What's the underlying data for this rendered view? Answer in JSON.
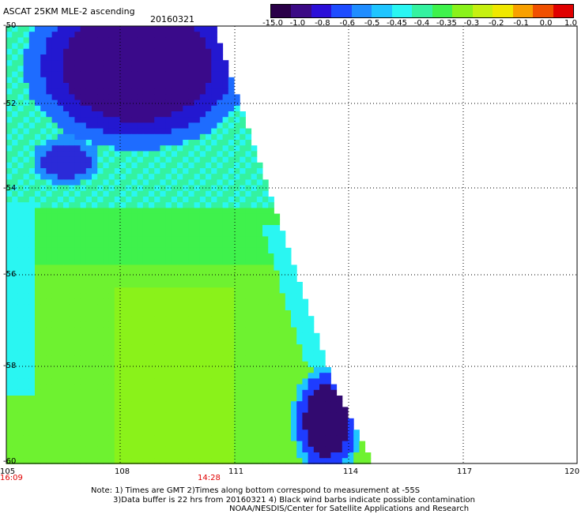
{
  "header": {
    "title": "ASCAT 25KM MLE-2 ascending",
    "date": "20160321"
  },
  "colorbar": {
    "labels": [
      "-15.0",
      "-1.0",
      "-0.8",
      "-0.6",
      "-0.5",
      "-0.45",
      "-0.4",
      "-0.35",
      "-0.3",
      "-0.2",
      "-0.1",
      "0.0",
      "1.0"
    ],
    "colors": [
      "#2a0048",
      "#3b0a85",
      "#2b0fd8",
      "#1e4cff",
      "#1f8dff",
      "#1fc5ff",
      "#2af6f2",
      "#34f2a0",
      "#3ff24c",
      "#8af21a",
      "#c6f010",
      "#f0e800",
      "#f8a000",
      "#f05000",
      "#e00000"
    ]
  },
  "axes": {
    "x_ticks": [
      "105",
      "108",
      "111",
      "114",
      "117",
      "120"
    ],
    "y_ticks": [
      "-50",
      "-52",
      "-54",
      "-56",
      "-58",
      "-60"
    ]
  },
  "times": {
    "left": "16:09",
    "mid": "14:28"
  },
  "notes": {
    "line1": "Note: 1) Times are GMT 2)Times along bottom correspond to measurement at -55S",
    "line2": "3)Data buffer is 22 hrs from 20160321 4) Black wind barbs indicate possible contamination",
    "line3": "NOAA/NESDIS/Center for Satellite Applications and Research"
  }
}
